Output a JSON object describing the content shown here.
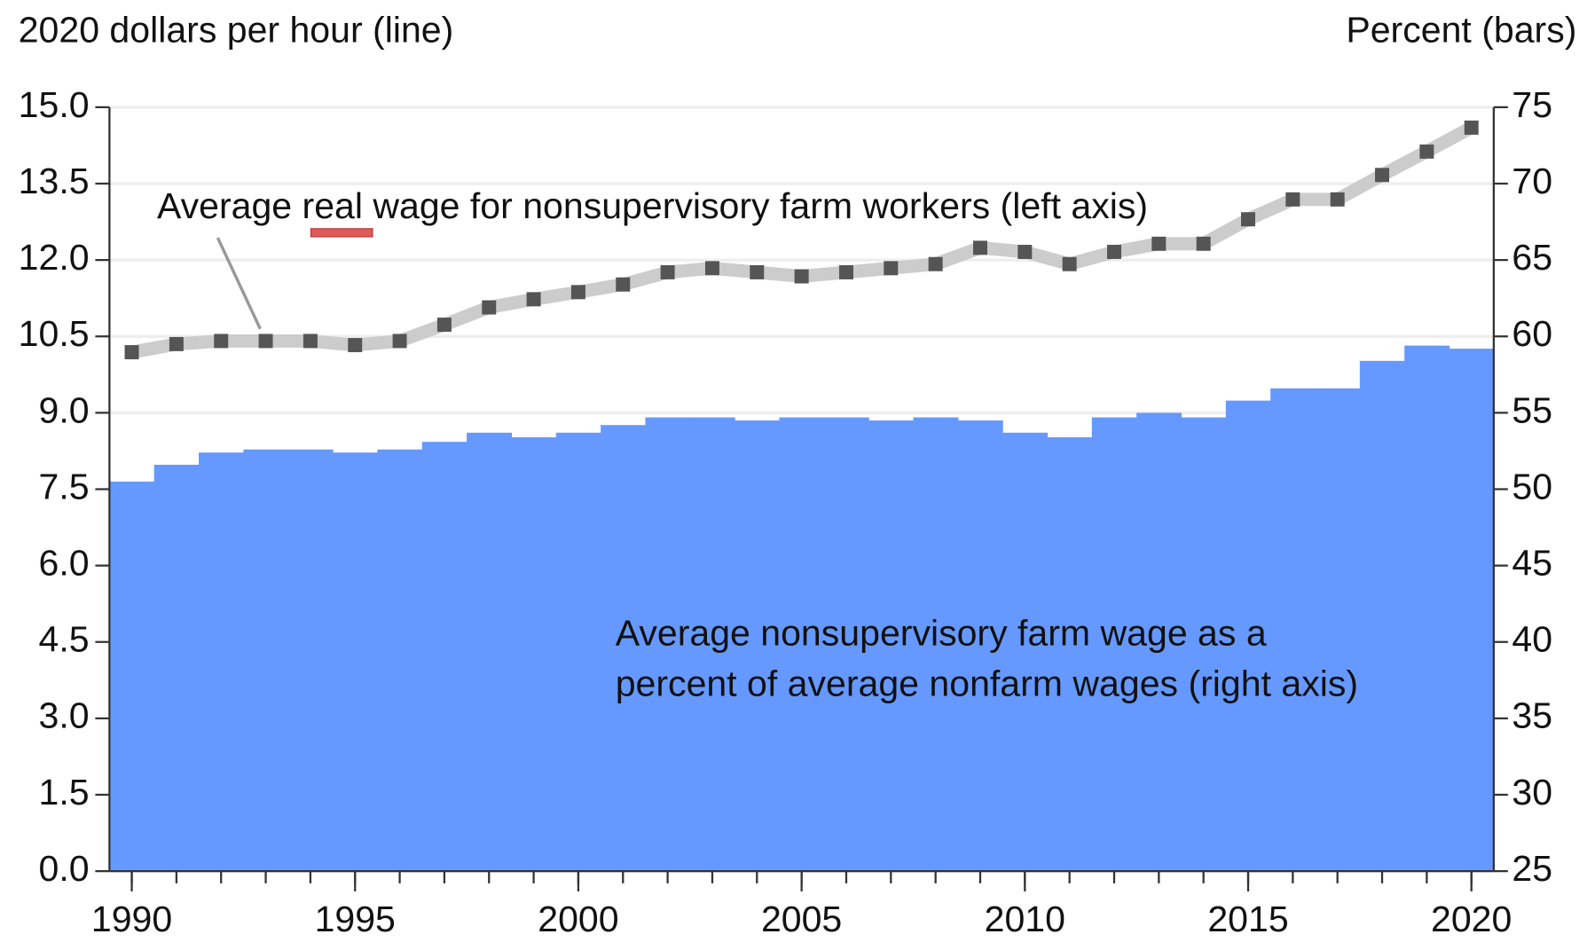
{
  "chart_data": {
    "type": "bar-line",
    "y_label": "2020 dollars per hour (line)",
    "y2_label": "Percent (bars)",
    "x": [
      1990,
      1991,
      1992,
      1993,
      1994,
      1995,
      1996,
      1997,
      1998,
      1999,
      2000,
      2001,
      2002,
      2003,
      2004,
      2005,
      2006,
      2007,
      2008,
      2009,
      2010,
      2011,
      2012,
      2013,
      2014,
      2015,
      2016,
      2017,
      2018,
      2019,
      2020
    ],
    "xlim": [
      1989.5,
      2020.5
    ],
    "xticks": [
      1990,
      1995,
      2000,
      2005,
      2010,
      2015,
      2020
    ],
    "ylim": [
      0,
      15
    ],
    "yticks": [
      {
        "value": 0,
        "label": "0.0"
      },
      1.5,
      {
        "value": 3,
        "label": "3.0"
      },
      4.5,
      {
        "value": 6,
        "label": "6.0"
      },
      7.5,
      {
        "value": 9,
        "label": "9.0"
      },
      10.5,
      {
        "value": 12,
        "label": "12.0"
      },
      13.5,
      {
        "value": 15,
        "label": "15.0"
      }
    ],
    "y2lim": [
      25,
      75
    ],
    "y2ticks": [
      25,
      30,
      35,
      40,
      45,
      50,
      55,
      60,
      65,
      70,
      75
    ],
    "grid": true,
    "series": [
      {
        "name": "Average nonsupervisory farm wage as a percent of average nonfarm wages (right axis)",
        "type": "bar",
        "axis": "y2",
        "color": "#6699ff",
        "values": [
          50.5,
          51.6,
          52.4,
          52.6,
          52.6,
          52.4,
          52.6,
          53.1,
          53.7,
          53.4,
          53.7,
          54.2,
          54.7,
          54.7,
          54.5,
          54.7,
          54.7,
          54.5,
          54.7,
          54.5,
          53.7,
          53.4,
          54.7,
          55.0,
          54.7,
          55.8,
          56.6,
          56.6,
          58.4,
          59.4,
          59.2
        ]
      },
      {
        "name": "Average real wage for nonsupervisory farm workers (left axis)",
        "type": "line",
        "color": "#cccccc",
        "marker_color": "#555555",
        "values": [
          10.19,
          10.35,
          10.41,
          10.41,
          10.41,
          10.33,
          10.41,
          10.73,
          11.07,
          11.23,
          11.37,
          11.52,
          11.76,
          11.84,
          11.76,
          11.68,
          11.76,
          11.84,
          11.92,
          12.24,
          12.16,
          11.92,
          12.16,
          12.32,
          12.32,
          12.8,
          13.19,
          13.19,
          13.67,
          14.13,
          14.6
        ]
      }
    ]
  }
}
